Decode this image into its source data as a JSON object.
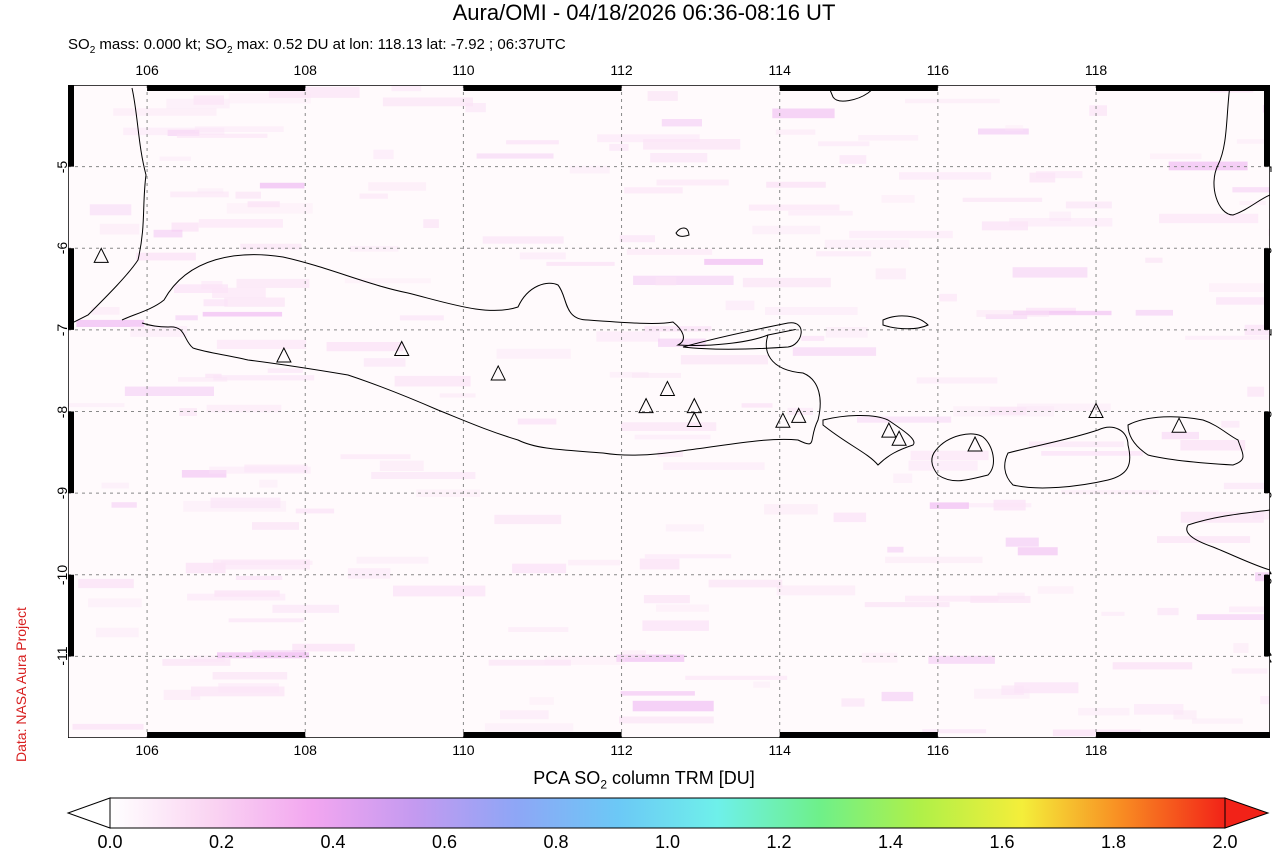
{
  "header": {
    "title": "Aura/OMI - 04/18/2026 06:36-08:16 UT",
    "subtitle_pre": "SO",
    "subtitle_sub": "2",
    "subtitle_mid": " mass: 0.000 kt; SO",
    "subtitle_sub2": "2",
    "subtitle_post": " max: 0.52 DU at lon: 118.13 lat: -7.92 ; 06:37UTC"
  },
  "credit": "Data: NASA Aura Project",
  "map": {
    "lon_range": [
      105,
      120.2
    ],
    "lat_range": [
      -12.0,
      -4.0
    ],
    "lon_ticks": [
      "106",
      "108",
      "110",
      "112",
      "114",
      "116",
      "118"
    ],
    "lat_ticks": [
      "-5",
      "-6",
      "-7",
      "-8",
      "-9",
      "-10",
      "-11"
    ],
    "volcanoes": [
      {
        "lon": 105.42,
        "lat": -6.1
      },
      {
        "lon": 107.73,
        "lat": -7.32
      },
      {
        "lon": 109.22,
        "lat": -7.24
      },
      {
        "lon": 110.44,
        "lat": -7.54
      },
      {
        "lon": 112.31,
        "lat": -7.94
      },
      {
        "lon": 112.58,
        "lat": -7.73
      },
      {
        "lon": 112.92,
        "lat": -7.94
      },
      {
        "lon": 112.92,
        "lat": -8.11
      },
      {
        "lon": 114.04,
        "lat": -8.12
      },
      {
        "lon": 114.24,
        "lat": -8.06
      },
      {
        "lon": 115.38,
        "lat": -8.24
      },
      {
        "lon": 115.51,
        "lat": -8.34
      },
      {
        "lon": 116.47,
        "lat": -8.41
      },
      {
        "lon": 118.0,
        "lat": -8.0
      },
      {
        "lon": 119.05,
        "lat": -8.18
      }
    ],
    "frame_color": "#000000",
    "grid_color": "#888888"
  },
  "colorbar": {
    "title_pre": "PCA SO",
    "title_sub": "2",
    "title_post": " column TRM [DU]",
    "labels": [
      "0.0",
      "0.2",
      "0.4",
      "0.6",
      "0.8",
      "1.0",
      "1.2",
      "1.4",
      "1.6",
      "1.8",
      "2.0"
    ],
    "stops": [
      "#ffffff",
      "#fad4f2",
      "#f2a6f0",
      "#c49af0",
      "#8ea6f6",
      "#6cc8f6",
      "#6ef0ea",
      "#6ef08a",
      "#b0f048",
      "#f4ee3a",
      "#f88a22",
      "#f22218"
    ]
  }
}
